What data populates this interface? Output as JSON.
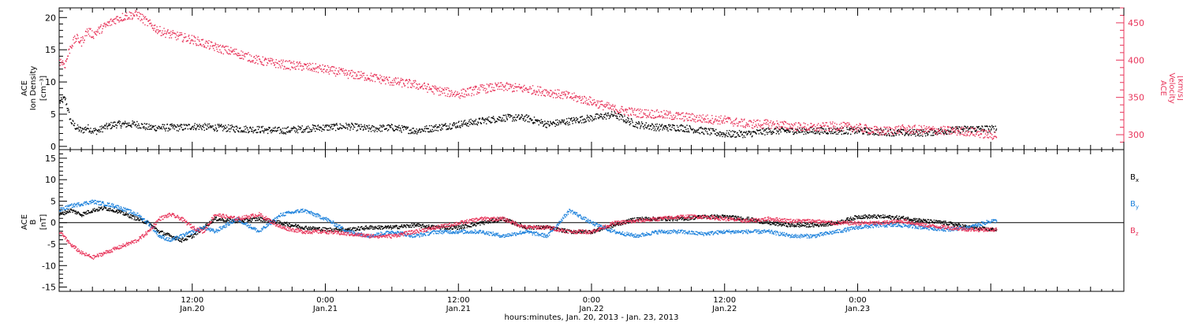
{
  "x_axis": {
    "title": "hours:minutes, Jan. 20, 2013 - Jan. 23, 2013",
    "range_hours": [
      0,
      96
    ],
    "major_ticks": [
      {
        "hour": 12,
        "time": "12:00",
        "date": "Jan.20"
      },
      {
        "hour": 24,
        "time": "0:00",
        "date": "Jan.21"
      },
      {
        "hour": 36,
        "time": "12:00",
        "date": "Jan.21"
      },
      {
        "hour": 48,
        "time": "0:00",
        "date": "Jan.22"
      },
      {
        "hour": 60,
        "time": "12:00",
        "date": "Jan.22"
      },
      {
        "hour": 72,
        "time": "0:00",
        "date": "Jan.23"
      }
    ]
  },
  "chart_data": [
    {
      "type": "scatter",
      "panel": "top",
      "ylabel_left": [
        "ACE",
        "Ion Density",
        "[cm⁻³]"
      ],
      "ylabel_right": [
        "ACE",
        "Velocity",
        "[km/s]"
      ],
      "ylim_left": [
        -0.5,
        21.5
      ],
      "ylim_right": [
        280,
        470
      ],
      "yticks_left": [
        0,
        5,
        10,
        15,
        20
      ],
      "yticks_right": [
        300,
        350,
        400,
        450
      ],
      "data_ends_hour": 84.5,
      "series": [
        {
          "axis": "left",
          "color": "#000000",
          "x": [
            0,
            0.5,
            1,
            1.5,
            2,
            2.5,
            3,
            3.5,
            4,
            5,
            6,
            7,
            8,
            9,
            10,
            11,
            12,
            14,
            16,
            18,
            20,
            22,
            24,
            26,
            28,
            30,
            32,
            34,
            36,
            38,
            40,
            42,
            44,
            46,
            48,
            50,
            52,
            54,
            56,
            58,
            60,
            62,
            64,
            66,
            68,
            70,
            72,
            74,
            76,
            78,
            80,
            82,
            84
          ],
          "values": [
            7,
            7.5,
            4,
            3,
            2.5,
            3,
            2.5,
            2.5,
            3,
            3.5,
            3.5,
            3.5,
            3,
            3,
            3,
            3,
            3.2,
            3,
            2.8,
            2.7,
            2.5,
            2.8,
            3,
            3.2,
            2.8,
            3,
            2.5,
            3,
            3.5,
            4,
            4.5,
            4.5,
            3.5,
            4,
            4.5,
            5,
            3.5,
            3,
            3,
            2.5,
            2,
            2,
            2.5,
            2.5,
            2.5,
            2.5,
            2.5,
            2.3,
            2.2,
            2.2,
            2.5,
            2.8,
            2.8
          ]
        },
        {
          "axis": "right",
          "color": "#e8345a",
          "x": [
            0,
            0.5,
            1,
            1.5,
            2,
            2.5,
            3,
            4,
            5,
            6,
            7,
            8,
            9,
            10,
            12,
            14,
            16,
            18,
            20,
            22,
            24,
            26,
            28,
            30,
            32,
            34,
            36,
            38,
            40,
            42,
            44,
            46,
            48,
            50,
            52,
            54,
            56,
            58,
            60,
            62,
            64,
            66,
            68,
            70,
            72,
            74,
            76,
            78,
            80,
            82,
            84
          ],
          "values": [
            400,
            395,
            420,
            430,
            425,
            440,
            435,
            445,
            455,
            460,
            462,
            450,
            440,
            435,
            428,
            418,
            410,
            400,
            395,
            392,
            388,
            382,
            378,
            372,
            368,
            360,
            355,
            362,
            365,
            362,
            358,
            352,
            345,
            335,
            330,
            328,
            325,
            322,
            320,
            315,
            315,
            312,
            310,
            312,
            310,
            305,
            308,
            307,
            306,
            305,
            300
          ]
        }
      ]
    },
    {
      "type": "scatter",
      "panel": "bottom",
      "ylabel_left": [
        "ACE",
        "B",
        "[nT]"
      ],
      "ylim": [
        -16,
        17
      ],
      "yticks": [
        -15,
        -10,
        -5,
        0,
        5,
        10,
        15
      ],
      "zero_line": true,
      "data_ends_hour": 84.5,
      "legend": [
        {
          "label": "B",
          "sub": "x",
          "color": "#000000"
        },
        {
          "label": "B",
          "sub": "y",
          "color": "#1e82dc"
        },
        {
          "label": "B",
          "sub": "z",
          "color": "#e8345a"
        }
      ],
      "series": [
        {
          "name": "Bx",
          "color": "#000000",
          "x": [
            0,
            1,
            2,
            3,
            4,
            5,
            6,
            7,
            8,
            9,
            10,
            11,
            12,
            13,
            14,
            16,
            18,
            20,
            22,
            24,
            26,
            28,
            30,
            32,
            34,
            36,
            38,
            40,
            42,
            44,
            46,
            48,
            50,
            52,
            54,
            56,
            58,
            60,
            62,
            64,
            66,
            68,
            70,
            72,
            74,
            76,
            78,
            80,
            82,
            84
          ],
          "values": [
            2,
            3,
            2,
            3,
            3.5,
            3,
            2,
            1,
            0,
            -2,
            -3,
            -4,
            -3,
            -1,
            1,
            0.5,
            1,
            0,
            -1,
            -1.5,
            -1.5,
            -1,
            -1,
            -0.5,
            -1,
            -1,
            0,
            1,
            -1,
            -1,
            -2,
            -2,
            -0.5,
            1,
            1,
            1,
            1.5,
            1.5,
            1,
            0,
            -0.5,
            -0.5,
            0,
            1.5,
            1.5,
            1.2,
            0.5,
            0,
            -1,
            -1.5
          ]
        },
        {
          "name": "By",
          "color": "#1e82dc",
          "x": [
            0,
            1,
            2,
            3,
            4,
            5,
            6,
            7,
            8,
            9,
            10,
            11,
            12,
            13,
            14,
            16,
            18,
            20,
            22,
            24,
            26,
            28,
            30,
            32,
            34,
            36,
            38,
            40,
            42,
            44,
            46,
            48,
            50,
            52,
            54,
            56,
            58,
            60,
            62,
            64,
            66,
            68,
            70,
            72,
            74,
            76,
            78,
            80,
            82,
            84
          ],
          "values": [
            3,
            4,
            4.5,
            5,
            4.5,
            4,
            3,
            2,
            0,
            -3,
            -4,
            -3,
            -2,
            -1,
            -2,
            1,
            -2,
            2,
            3,
            1,
            -2,
            -3,
            -2,
            -3,
            -2,
            -2,
            -2,
            -3,
            -2,
            -3,
            3,
            0,
            -2,
            -3,
            -2,
            -2,
            -2.5,
            -2,
            -2,
            -2,
            -3,
            -3,
            -2,
            -1,
            -0.5,
            -0.5,
            -1,
            -1.5,
            -1,
            0.5
          ]
        },
        {
          "name": "Bz",
          "color": "#e8345a",
          "x": [
            0,
            1,
            2,
            3,
            4,
            5,
            6,
            7,
            8,
            9,
            10,
            11,
            12,
            13,
            14,
            16,
            18,
            20,
            22,
            24,
            26,
            28,
            30,
            32,
            34,
            36,
            38,
            40,
            42,
            44,
            46,
            48,
            50,
            52,
            54,
            56,
            58,
            60,
            62,
            64,
            66,
            68,
            70,
            72,
            74,
            76,
            78,
            80,
            82,
            84
          ],
          "values": [
            -2,
            -5,
            -7,
            -8,
            -7,
            -6,
            -5,
            -4,
            -2,
            1,
            2,
            1,
            -1,
            -2,
            2,
            1,
            2,
            -1,
            -2,
            -2,
            -2.5,
            -3,
            -3,
            -2,
            -1,
            0,
            1,
            1,
            -1,
            -1,
            -2,
            -2,
            0,
            0.5,
            1,
            1.5,
            1.5,
            1,
            0.5,
            1,
            0.5,
            0.5,
            0,
            0,
            0,
            0.5,
            -0.5,
            -1,
            -1.5,
            -1.5
          ]
        }
      ]
    }
  ]
}
